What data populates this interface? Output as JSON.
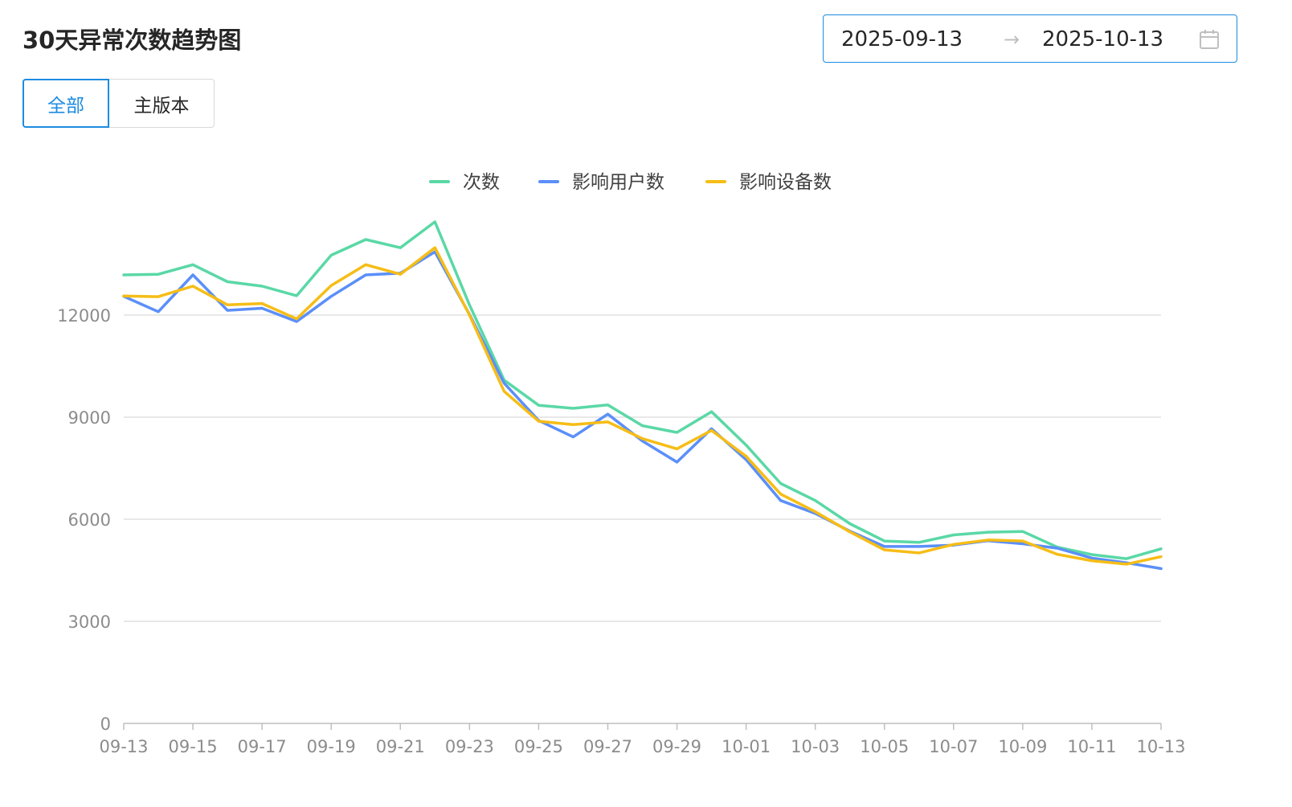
{
  "header": {
    "title": "30天异常次数趋势图"
  },
  "date_range": {
    "start": "2025-09-13",
    "separator": "→",
    "end": "2025-10-13",
    "icon": "calendar-icon",
    "border_color": "#1d8ce0"
  },
  "segments": {
    "all_label": "全部",
    "main_label": "主版本",
    "selected": "all",
    "accent_color": "#1d8ce0"
  },
  "chart_data": {
    "type": "line",
    "title": "",
    "xlabel": "",
    "ylabel": "",
    "ylim": [
      0,
      15000
    ],
    "yticks": [
      0,
      3000,
      6000,
      9000,
      12000
    ],
    "grid": true,
    "legend_position": "top-center",
    "x": [
      "09-13",
      "09-14",
      "09-15",
      "09-16",
      "09-17",
      "09-18",
      "09-19",
      "09-20",
      "09-21",
      "09-22",
      "09-23",
      "09-24",
      "09-25",
      "09-26",
      "09-27",
      "09-28",
      "09-29",
      "09-30",
      "10-01",
      "10-02",
      "10-03",
      "10-04",
      "10-05",
      "10-06",
      "10-07",
      "10-08",
      "10-09",
      "10-10",
      "10-11",
      "10-12",
      "10-13"
    ],
    "xtick_labels": [
      "09-13",
      "09-15",
      "09-17",
      "09-19",
      "09-21",
      "09-23",
      "09-25",
      "09-27",
      "09-29",
      "10-01",
      "10-03",
      "10-05",
      "10-07",
      "10-09",
      "10-11",
      "10-13"
    ],
    "series": [
      {
        "name": "次数",
        "color": "#5ad8a6",
        "values": [
          13180,
          13200,
          13480,
          12980,
          12850,
          12570,
          13760,
          14220,
          13980,
          14740,
          12300,
          10090,
          9350,
          9260,
          9360,
          8750,
          8550,
          9160,
          8180,
          7050,
          6550,
          5870,
          5360,
          5320,
          5540,
          5620,
          5640,
          5180,
          4960,
          4840,
          5130
        ]
      },
      {
        "name": "影响用户数",
        "color": "#5b8ff9",
        "values": [
          12550,
          12100,
          13180,
          12140,
          12200,
          11810,
          12550,
          13180,
          13230,
          13860,
          12020,
          10000,
          8900,
          8420,
          9090,
          8300,
          7680,
          8660,
          7750,
          6550,
          6170,
          5650,
          5200,
          5200,
          5240,
          5370,
          5280,
          5150,
          4860,
          4720,
          4550
        ]
      },
      {
        "name": "影响设备数",
        "color": "#f6bd16",
        "values": [
          12560,
          12540,
          12850,
          12300,
          12340,
          11890,
          12870,
          13480,
          13200,
          13980,
          12000,
          9760,
          8880,
          8780,
          8860,
          8370,
          8070,
          8610,
          7850,
          6740,
          6220,
          5630,
          5100,
          5010,
          5260,
          5390,
          5360,
          4970,
          4780,
          4680,
          4900
        ]
      }
    ]
  }
}
